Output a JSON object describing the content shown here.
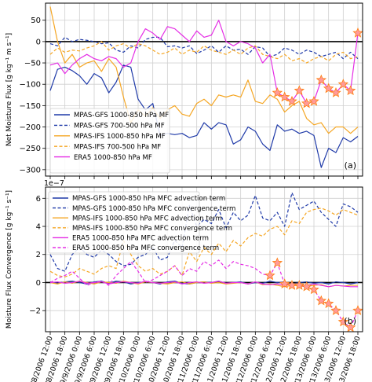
{
  "colors": {
    "mpas_gfs": "#1f3aa8",
    "mpas_ifs": "#f5a623",
    "era5": "#e52ee5",
    "marker_fill": "#ff9a9a",
    "marker_edge": "#ff7f0e",
    "grid": "#d0d0d0",
    "zero_line": "#000000"
  },
  "x_tick_labels": [
    "9/8/2006 12:00",
    "9/8/2006 18:00",
    "9/9/2006 0:00",
    "9/9/2006 6:00",
    "9/9/2006 12:00",
    "9/9/2006 18:00",
    "9/10/2006 0:00",
    "9/10/2006 6:00",
    "9/10/2006 12:00",
    "9/10/2006 18:00",
    "9/11/2006 0:00",
    "9/11/2006 6:00",
    "9/11/2006 12:00",
    "9/11/2006 18:00",
    "9/12/2006 0:00",
    "9/12/2006 6:00",
    "9/12/2006 12:00",
    "9/12/2006 18:00",
    "9/13/2006 0:00",
    "9/13/2006 6:00",
    "9/13/2006 12:00",
    "9/13/2006 18:00"
  ],
  "chart_data": [
    {
      "type": "line",
      "panel_label": "(a)",
      "ylabel": "Net Moisture Flux [g kg⁻¹ m s⁻¹]",
      "ylim": [
        -315,
        90
      ],
      "yticks": [
        50,
        0,
        -50,
        -100,
        -150,
        -200,
        -250,
        -300
      ],
      "grid": true,
      "legend_position": "lower-left",
      "x_count": 43,
      "series": [
        {
          "name": "MPAS-GFS 1000-850 hPa MF",
          "style": "solid",
          "color_key": "mpas_gfs",
          "values": [
            -115,
            -65,
            -60,
            -68,
            -80,
            -100,
            -75,
            -85,
            -120,
            -95,
            -55,
            -60,
            -135,
            -160,
            -145,
            -220,
            -215,
            -218,
            -215,
            -225,
            -220,
            -190,
            -205,
            -190,
            -195,
            -240,
            -230,
            -200,
            -210,
            -240,
            -255,
            -195,
            -210,
            -205,
            -215,
            -210,
            -220,
            -295,
            -250,
            -260,
            -225,
            -235,
            -222
          ]
        },
        {
          "name": "MPAS-GFS 700-500 hPa MF",
          "style": "dashed",
          "color_key": "mpas_gfs",
          "values": [
            -5,
            -10,
            10,
            0,
            5,
            3,
            0,
            -5,
            -3,
            -20,
            -25,
            -10,
            -15,
            5,
            10,
            10,
            -12,
            -10,
            -15,
            -10,
            -28,
            -20,
            -10,
            -25,
            -10,
            -20,
            -18,
            -30,
            -12,
            -15,
            -35,
            -30,
            -15,
            -20,
            -30,
            -20,
            -25,
            -35,
            -30,
            -25,
            -40,
            -25,
            -40
          ]
        },
        {
          "name": "MPAS-IFS 1000-850 hPa MF",
          "style": "solid",
          "color_key": "mpas_ifs",
          "values": [
            82,
            0,
            -50,
            -30,
            -60,
            -50,
            -45,
            -70,
            -40,
            -60,
            -130,
            -190,
            -160,
            -175,
            -155,
            -180,
            -160,
            -150,
            -170,
            -175,
            -145,
            -135,
            -150,
            -125,
            -130,
            -125,
            -130,
            -90,
            -140,
            -145,
            -125,
            -135,
            -165,
            -150,
            -140,
            -180,
            -195,
            -190,
            -215,
            -200,
            -200,
            -215,
            -200
          ]
        },
        {
          "name": "MPAS-IFS 700-500 hPa MF",
          "style": "dashed",
          "color_key": "mpas_ifs",
          "values": [
            -30,
            -15,
            -25,
            -20,
            -22,
            -15,
            -10,
            0,
            -20,
            -10,
            -5,
            -15,
            -5,
            -10,
            -20,
            -30,
            -25,
            -15,
            -30,
            -20,
            -25,
            -10,
            -20,
            -25,
            -30,
            -20,
            -30,
            -15,
            -10,
            -30,
            -35,
            -40,
            -30,
            -45,
            -40,
            -50,
            -40,
            -35,
            -45,
            -30,
            -25,
            -40,
            -35
          ]
        },
        {
          "name": "ERA5 1000-850 hPa MF",
          "style": "solid",
          "color_key": "era5",
          "values": [
            -55,
            -50,
            -75,
            -55,
            -40,
            -30,
            -40,
            -45,
            -35,
            -40,
            -60,
            -50,
            0,
            30,
            20,
            5,
            35,
            30,
            15,
            0,
            25,
            10,
            15,
            50,
            0,
            -10,
            0,
            -5,
            -15,
            -50,
            -30,
            -120,
            -130,
            -140,
            -115,
            -145,
            -140,
            -90,
            -110,
            -120,
            -100,
            -115,
            20
          ],
          "marker_from_index": 31
        }
      ]
    },
    {
      "type": "line",
      "panel_label": "(b)",
      "ylabel": "Moisture Flux Convergence [g kg⁻¹ s⁻¹]",
      "scale_label": "1e−7",
      "ylim": [
        -3.5,
        6.8
      ],
      "yticks": [
        6,
        4,
        2,
        0,
        -2
      ],
      "grid": true,
      "legend_position": "upper-left",
      "x_count": 43,
      "series": [
        {
          "name": "MPAS-GFS 1000-850 hPa MFC advection term",
          "style": "solid",
          "color_key": "mpas_gfs",
          "values": [
            0.05,
            -0.05,
            0.05,
            0.1,
            0.0,
            -0.1,
            0.05,
            0.1,
            -0.05,
            0.1,
            0.05,
            -0.1,
            0.0,
            0.05,
            0.0,
            -0.1,
            0.05,
            0.1,
            -0.05,
            -0.1,
            0.0,
            0.05,
            0.0,
            0.1,
            -0.05,
            0.0,
            0.05,
            -0.1,
            0.0,
            -0.05,
            0.1,
            0.0,
            0.05,
            -0.1,
            0.0,
            0.05,
            -0.05,
            0.0,
            -0.1,
            0.05,
            0.0,
            -0.1,
            0.0
          ]
        },
        {
          "name": "MPAS-GFS 1000-850 hPa MFC convergence term",
          "style": "dashed",
          "color_key": "mpas_gfs",
          "values": [
            2.0,
            1.0,
            0.8,
            2.0,
            2.5,
            2.0,
            1.8,
            2.3,
            2.0,
            1.5,
            1.2,
            1.3,
            1.8,
            2.0,
            2.5,
            1.6,
            1.8,
            3.0,
            2.5,
            5.5,
            4.0,
            4.5,
            4.2,
            5.2,
            3.9,
            5.0,
            4.4,
            4.8,
            6.2,
            4.6,
            4.4,
            5.0,
            4.0,
            6.4,
            5.2,
            5.5,
            5.8,
            5.0,
            4.5,
            4.0,
            5.6,
            5.4,
            5.0
          ]
        },
        {
          "name": "MPAS-IFS 1000-850 hPa MFC advection term",
          "style": "solid",
          "color_key": "mpas_ifs",
          "values": [
            0.0,
            -0.1,
            0.05,
            -0.05,
            0.1,
            0.0,
            -0.1,
            0.05,
            0.0,
            -0.05,
            0.1,
            0.0,
            -0.1,
            0.05,
            0.0,
            -0.05,
            -0.1,
            0.0,
            0.05,
            -0.1,
            0.0,
            0.05,
            -0.05,
            0.0,
            -0.1,
            -0.05,
            0.0,
            -0.1,
            0.05,
            -0.15,
            -0.1,
            -0.2,
            -0.3,
            -0.2,
            -0.25,
            -0.3,
            -0.2,
            -0.15,
            -0.3,
            -0.2,
            -0.25,
            -0.2,
            -0.2
          ]
        },
        {
          "name": "MPAS-IFS 1000-850 hPa MFC convergence term",
          "style": "dashed",
          "color_key": "mpas_ifs",
          "values": [
            0.8,
            0.5,
            0.4,
            0.6,
            1.0,
            0.8,
            0.6,
            1.0,
            1.2,
            1.0,
            3.0,
            2.0,
            1.2,
            0.8,
            1.0,
            0.6,
            0.8,
            1.2,
            0.5,
            2.2,
            1.5,
            2.5,
            2.0,
            2.8,
            2.2,
            3.0,
            2.6,
            3.2,
            3.5,
            3.3,
            3.8,
            4.0,
            3.4,
            4.4,
            4.2,
            5.0,
            5.2,
            5.3,
            5.1,
            4.8,
            5.2,
            5.0,
            4.8
          ]
        },
        {
          "name": "ERA5 1000-850 hPa MFC advection term",
          "style": "solid",
          "color_key": "era5",
          "values": [
            0.0,
            0.05,
            -0.05,
            0.0,
            0.1,
            -0.05,
            0.0,
            0.05,
            -0.1,
            0.0,
            0.05,
            0.0,
            -0.05,
            0.1,
            0.0,
            -0.05,
            0.0,
            0.05,
            -0.1,
            0.0,
            0.05,
            -0.05,
            0.0,
            0.1,
            -0.05,
            0.0,
            0.0,
            -0.1,
            0.05,
            -0.1,
            -0.15,
            -0.1,
            -0.2,
            -0.1,
            -0.15,
            -0.2,
            -0.1,
            -0.2,
            -0.3,
            -0.2,
            -0.25,
            -0.3,
            -0.3
          ]
        },
        {
          "name": "ERA5 1000-850 hPa MFC convergence term",
          "style": "dashed",
          "color_key": "era5",
          "values": [
            0.0,
            0.3,
            0.5,
            0.8,
            0.3,
            -0.2,
            0.0,
            0.1,
            -0.2,
            0.5,
            1.0,
            1.5,
            0.8,
            0.0,
            0.2,
            0.5,
            0.8,
            1.2,
            0.5,
            1.0,
            0.8,
            1.5,
            1.2,
            1.6,
            1.0,
            1.5,
            1.3,
            1.2,
            1.0,
            0.6,
            0.5,
            1.4,
            -0.1,
            -0.2,
            -0.2,
            -0.3,
            -0.5,
            -1.3,
            -1.5,
            -2.0,
            -2.8,
            -3.2,
            -2.0
          ],
          "marker_from_index": 30
        }
      ]
    }
  ]
}
